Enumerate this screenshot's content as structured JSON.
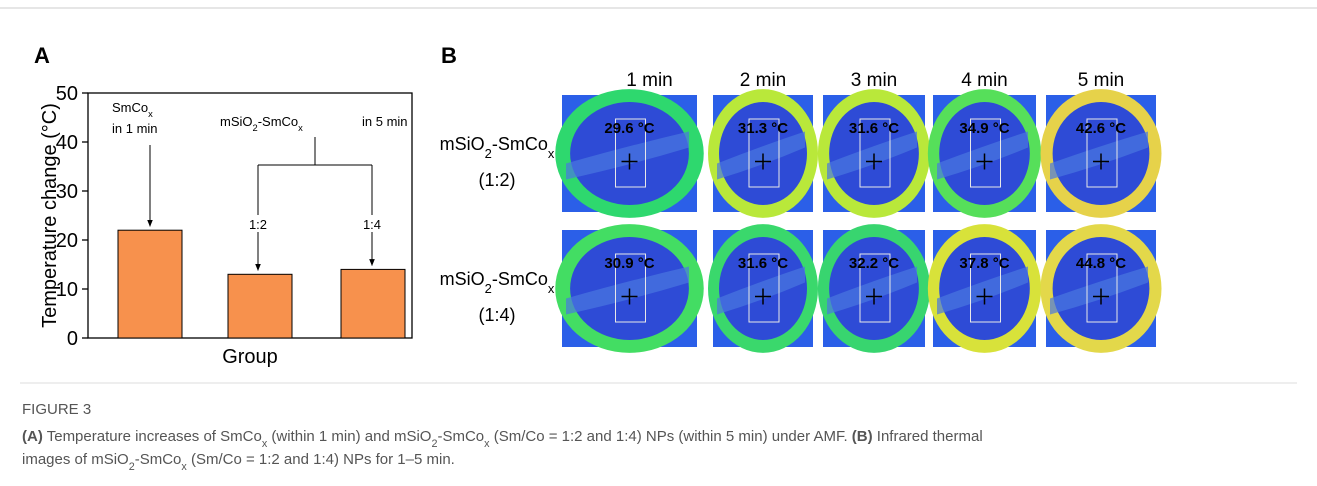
{
  "panel_labels": {
    "a": "A",
    "b": "B"
  },
  "chart_data": {
    "type": "bar",
    "y_label": "Temperature change (°C)",
    "x_label": "Group",
    "categories": [
      null,
      null,
      null
    ],
    "values": [
      22,
      13,
      14
    ],
    "color": "#f7914d",
    "ylim": [
      0,
      50
    ],
    "yticks": [
      0,
      10,
      20,
      30,
      40,
      50
    ],
    "annotations": {
      "smcox": [
        {
          "text": "SmCo"
        },
        {
          "text": "x",
          "style": "sub"
        }
      ],
      "smcox_time": "in 1 min",
      "msio": [
        {
          "text": "mSiO"
        },
        {
          "text": "2",
          "style": "sub"
        },
        {
          "text": "-SmCo"
        },
        {
          "text": "x",
          "style": "sub"
        }
      ],
      "msio_time": "in 5 min",
      "ratio_1": "1:2",
      "ratio_2": "1:4"
    }
  },
  "panel_b": {
    "columns": [
      "1 min",
      "2 min",
      "3 min",
      "4 min",
      "5 min"
    ],
    "rows": [
      {
        "label": [
          {
            "text": "mSiO"
          },
          {
            "text": "2",
            "style": "sub"
          },
          {
            "text": "-SmCo"
          },
          {
            "text": "x",
            "style": "sub"
          }
        ],
        "ratio": "(1:2)",
        "temps": [
          "29.6 °C",
          "31.3 °C",
          "31.6 °C",
          "34.9 °C",
          "42.6 °C"
        ]
      },
      {
        "label": [
          {
            "text": "mSiO"
          },
          {
            "text": "2",
            "style": "sub"
          },
          {
            "text": "-SmCo"
          },
          {
            "text": "x",
            "style": "sub"
          }
        ],
        "ratio": "(1:4)",
        "temps": [
          "30.9 °C",
          "31.6 °C",
          "32.2 °C",
          "37.8 °C",
          "44.8 °C"
        ]
      }
    ]
  },
  "caption": {
    "figure": "FIGURE 3",
    "lines": [
      [
        {
          "text": "(A)",
          "style": "bold"
        },
        {
          "text": " Temperature increases of SmCo"
        },
        {
          "text": "x",
          "style": "sub"
        },
        {
          "text": " (within 1 min) and mSiO"
        },
        {
          "text": "2",
          "style": "sub"
        },
        {
          "text": "-SmCo"
        },
        {
          "text": "x",
          "style": "sub"
        },
        {
          "text": " (Sm/Co = 1:2 and 1:4) NPs (within 5 min) under AMF. "
        },
        {
          "text": "(B)",
          "style": "bold"
        },
        {
          "text": " Infrared thermal"
        }
      ],
      [
        {
          "text": "images of mSiO"
        },
        {
          "text": "2",
          "style": "sub"
        },
        {
          "text": "-SmCo"
        },
        {
          "text": "x",
          "style": "sub"
        },
        {
          "text": " (Sm/Co = 1:2 and 1:4) NPs for 1–5 min."
        }
      ]
    ]
  }
}
